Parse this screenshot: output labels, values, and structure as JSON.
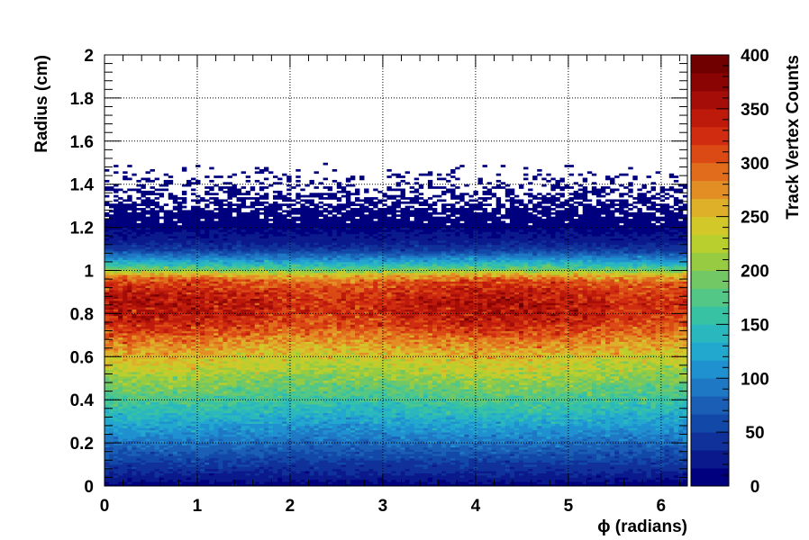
{
  "chart_data": {
    "type": "heatmap",
    "title": "",
    "xlabel": "ϕ (radians)",
    "ylabel": "Radius (cm)",
    "zlabel": "Track Vertex Counts",
    "xlim": [
      0,
      6.2832
    ],
    "ylim": [
      0,
      2
    ],
    "zlim": [
      0,
      400
    ],
    "x_ticks": [
      "0",
      "1",
      "2",
      "3",
      "4",
      "5",
      "6"
    ],
    "y_ticks": [
      "0",
      "0.2",
      "0.4",
      "0.6",
      "0.8",
      "1",
      "1.2",
      "1.4",
      "1.6",
      "1.8",
      "2"
    ],
    "z_ticks": [
      "0",
      "50",
      "100",
      "150",
      "200",
      "250",
      "300",
      "350",
      "400"
    ],
    "grid": true,
    "colormap": "rainbow",
    "x_bins": 128,
    "y_bins": 200,
    "radial_profile": {
      "radius": [
        0.0,
        0.02,
        0.05,
        0.1,
        0.15,
        0.2,
        0.25,
        0.3,
        0.35,
        0.4,
        0.45,
        0.5,
        0.55,
        0.6,
        0.65,
        0.7,
        0.75,
        0.8,
        0.85,
        0.9,
        0.95,
        0.98,
        1.0,
        1.02,
        1.05,
        1.08,
        1.1,
        1.15,
        1.2,
        1.21,
        1.3,
        1.4,
        1.5
      ],
      "counts": [
        8,
        15,
        30,
        45,
        65,
        85,
        105,
        125,
        145,
        165,
        185,
        205,
        225,
        245,
        265,
        295,
        320,
        335,
        340,
        330,
        300,
        260,
        200,
        160,
        110,
        70,
        45,
        20,
        12,
        3,
        1,
        0.3,
        0
      ]
    },
    "colors": {
      "plot_background": "#ffffff",
      "grid": "#000000",
      "axes": "#000000"
    }
  }
}
